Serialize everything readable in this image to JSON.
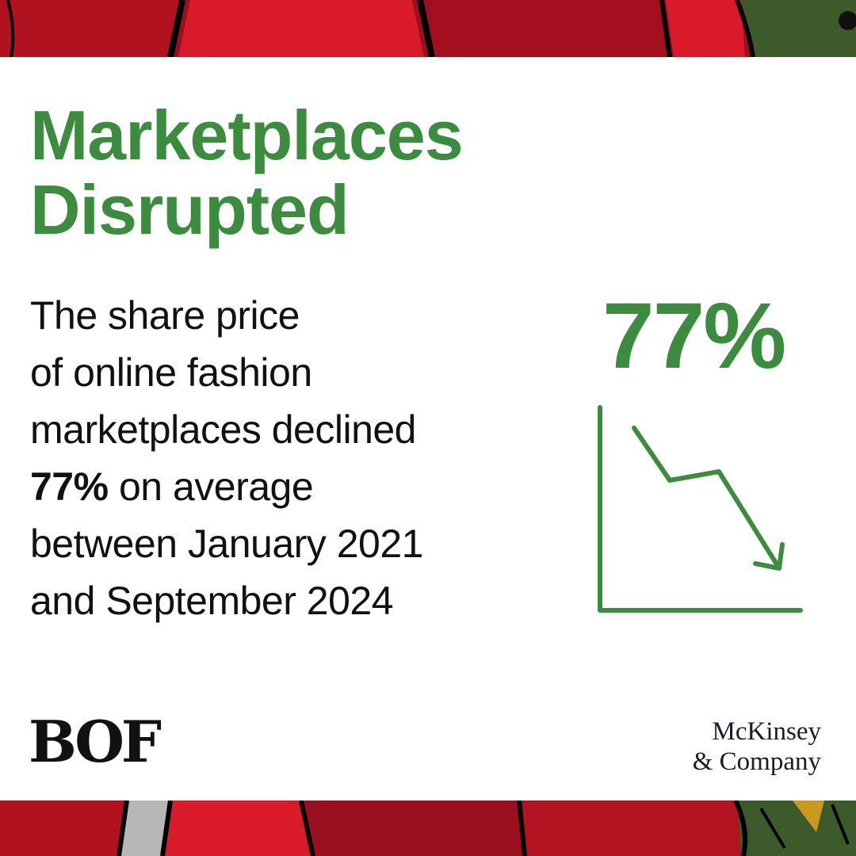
{
  "headline": {
    "line1": "Marketplaces",
    "line2": "Disrupted"
  },
  "body": {
    "line1": "The share price",
    "line2": "of online fashion",
    "line3": "marketplaces declined",
    "line4_bold": "77%",
    "line4_rest": " on average",
    "line5": "between January 2021",
    "line6": "and September 2024"
  },
  "stat": {
    "value": "77%"
  },
  "logos": {
    "bof": "BOF",
    "mckinsey_line1": "McKinsey",
    "mckinsey_line2": "& Company"
  },
  "colors": {
    "accent_green": "#3b8c3e",
    "band_red": "#c8102e",
    "band_dark_red": "#8e0f1c",
    "band_green": "#3d5a2a",
    "text": "#111111"
  },
  "icons": {
    "graphic": "declining-line-chart-icon"
  }
}
